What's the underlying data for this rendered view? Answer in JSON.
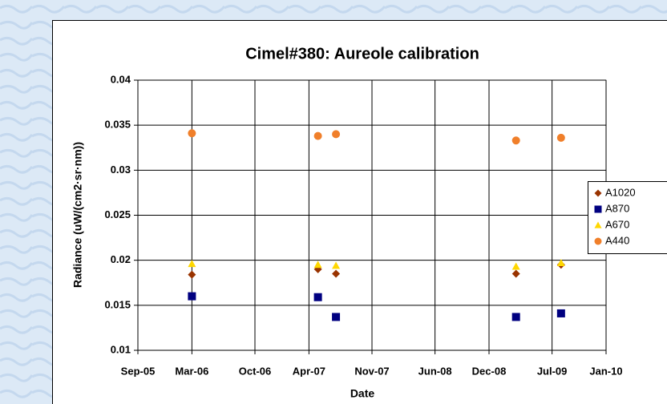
{
  "chart_data": {
    "type": "scatter",
    "title": "Cimel#380: Aureole calibration",
    "x_label": "Date",
    "y_label": "Radiance (uW/(cm2·sr·nm))",
    "x": [
      "2006-03",
      "2007-05",
      "2007-07",
      "2009-03",
      "2009-08"
    ],
    "series": [
      {
        "name": "A1020",
        "color": "#993300",
        "marker": "diamond",
        "values": [
          0.0184,
          0.019,
          0.0185,
          0.0185,
          0.0195
        ]
      },
      {
        "name": "A870",
        "color": "#000080",
        "marker": "square",
        "values": [
          0.016,
          0.0159,
          0.0137,
          0.0137,
          0.0141
        ]
      },
      {
        "name": "A670",
        "color": "#ffd700",
        "marker": "triangle",
        "values": [
          0.0196,
          0.0195,
          0.0194,
          0.0193,
          0.0197
        ]
      },
      {
        "name": "A440",
        "color": "#f07f2a",
        "marker": "circle",
        "values": [
          0.0341,
          0.0338,
          0.034,
          0.0333,
          0.0336
        ]
      }
    ],
    "xlim": [
      "2005-09",
      "2010-01"
    ],
    "xticks": [
      {
        "value": "2005-09",
        "label": "Sep-05"
      },
      {
        "value": "2006-03",
        "label": "Mar-06"
      },
      {
        "value": "2006-10",
        "label": "Oct-06"
      },
      {
        "value": "2007-04",
        "label": "Apr-07"
      },
      {
        "value": "2007-11",
        "label": "Nov-07"
      },
      {
        "value": "2008-06",
        "label": "Jun-08"
      },
      {
        "value": "2008-12",
        "label": "Dec-08"
      },
      {
        "value": "2009-07",
        "label": "Jul-09"
      },
      {
        "value": "2010-01",
        "label": "Jan-10"
      }
    ],
    "ylim": [
      0.01,
      0.04
    ],
    "yticks": [
      0.01,
      0.015,
      0.02,
      0.025,
      0.03,
      0.035,
      0.04
    ],
    "grid": true,
    "legend": "right"
  }
}
